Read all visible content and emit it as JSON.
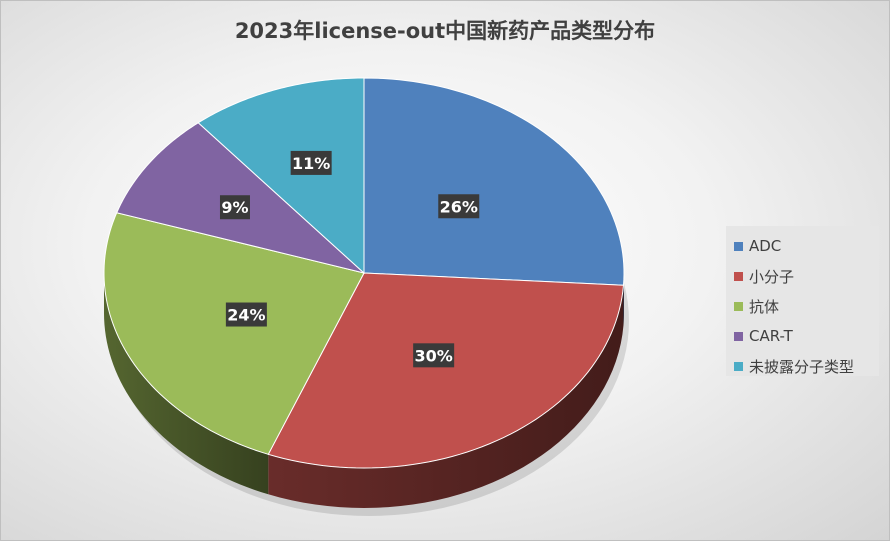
{
  "chart_data": {
    "type": "pie",
    "style": "3d",
    "title": "2023年license-out中国新药产品类型分布",
    "categories": [
      "ADC",
      "小分子",
      "抗体",
      "CAR-T",
      "未披露分子类型"
    ],
    "values": [
      26,
      30,
      24,
      9,
      11
    ],
    "labels": [
      "26%",
      "30%",
      "24%",
      "9%",
      "11%"
    ],
    "colors": [
      "#4F81BD",
      "#C0504D",
      "#9BBB59",
      "#8064A2",
      "#4BACC6"
    ],
    "legend_position": "right"
  }
}
